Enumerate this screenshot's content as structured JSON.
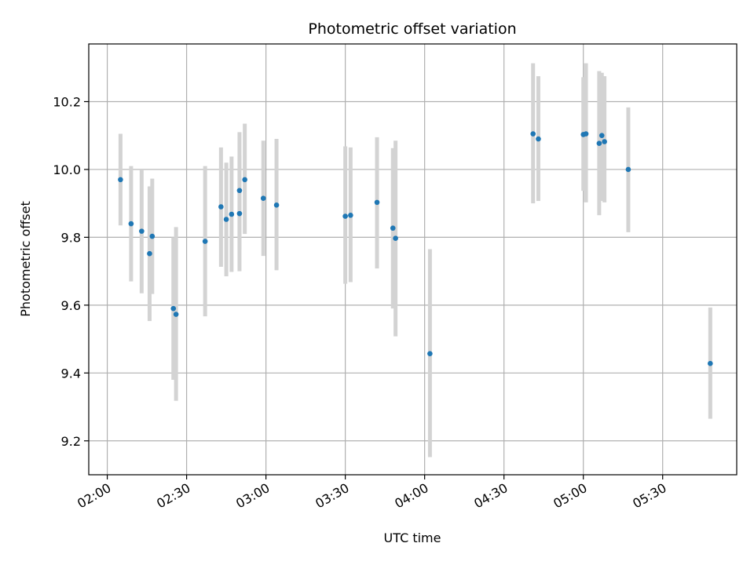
{
  "chart_data": {
    "type": "scatter",
    "title": "Photometric offset variation",
    "xlabel": "UTC time",
    "ylabel": "Photometric offset",
    "x_tick_labels": [
      "02:00",
      "02:30",
      "03:00",
      "03:30",
      "04:00",
      "04:30",
      "05:00",
      "05:30"
    ],
    "y_tick_labels": [
      "9.2",
      "9.4",
      "9.6",
      "9.8",
      "10.0",
      "10.2"
    ],
    "x_ticks": [
      "02:00",
      "02:30",
      "03:00",
      "03:30",
      "04:00",
      "04:30",
      "05:00",
      "05:30"
    ],
    "y_ticks": [
      9.2,
      9.4,
      9.6,
      9.8,
      10.0,
      10.2
    ],
    "xlim": [
      "01:53",
      "05:58"
    ],
    "ylim": [
      9.1,
      10.37
    ],
    "grid": true,
    "point_color": "#1f77b4",
    "errorbar_color": "#d3d3d3",
    "points": [
      {
        "x": "02:05",
        "y": 9.97,
        "err_low": 9.835,
        "err_high": 10.105
      },
      {
        "x": "02:09",
        "y": 9.84,
        "err_low": 9.67,
        "err_high": 10.01
      },
      {
        "x": "02:13",
        "y": 9.818,
        "err_low": 9.635,
        "err_high": 10.0
      },
      {
        "x": "02:16",
        "y": 9.752,
        "err_low": 9.553,
        "err_high": 9.95
      },
      {
        "x": "02:17",
        "y": 9.803,
        "err_low": 9.633,
        "err_high": 9.973
      },
      {
        "x": "02:25",
        "y": 9.59,
        "err_low": 9.38,
        "err_high": 9.8
      },
      {
        "x": "02:26",
        "y": 9.573,
        "err_low": 9.318,
        "err_high": 9.83
      },
      {
        "x": "02:37",
        "y": 9.788,
        "err_low": 9.567,
        "err_high": 10.01
      },
      {
        "x": "02:43",
        "y": 9.89,
        "err_low": 9.713,
        "err_high": 10.065
      },
      {
        "x": "02:45",
        "y": 9.853,
        "err_low": 9.685,
        "err_high": 10.02
      },
      {
        "x": "02:47",
        "y": 9.868,
        "err_low": 9.698,
        "err_high": 10.038
      },
      {
        "x": "02:50",
        "y": 9.87,
        "err_low": 9.7,
        "err_high": 10.04
      },
      {
        "x": "02:50",
        "y": 9.938,
        "err_low": 9.765,
        "err_high": 10.11
      },
      {
        "x": "02:52",
        "y": 9.97,
        "err_low": 9.81,
        "err_high": 10.135
      },
      {
        "x": "02:59",
        "y": 9.915,
        "err_low": 9.745,
        "err_high": 10.085
      },
      {
        "x": "03:04",
        "y": 9.895,
        "err_low": 9.703,
        "err_high": 10.09
      },
      {
        "x": "03:30",
        "y": 9.862,
        "err_low": 9.663,
        "err_high": 10.068
      },
      {
        "x": "03:32",
        "y": 9.865,
        "err_low": 9.668,
        "err_high": 10.065
      },
      {
        "x": "03:42",
        "y": 9.903,
        "err_low": 9.708,
        "err_high": 10.095
      },
      {
        "x": "03:48",
        "y": 9.827,
        "err_low": 9.59,
        "err_high": 10.063
      },
      {
        "x": "03:49",
        "y": 9.797,
        "err_low": 9.508,
        "err_high": 10.085
      },
      {
        "x": "04:02",
        "y": 9.457,
        "err_low": 9.152,
        "err_high": 9.765
      },
      {
        "x": "04:41",
        "y": 10.105,
        "err_low": 9.9,
        "err_high": 10.313
      },
      {
        "x": "04:43",
        "y": 10.09,
        "err_low": 9.907,
        "err_high": 10.275
      },
      {
        "x": "05:00",
        "y": 10.103,
        "err_low": 9.937,
        "err_high": 10.272
      },
      {
        "x": "05:01",
        "y": 10.105,
        "err_low": 9.903,
        "err_high": 10.313
      },
      {
        "x": "05:06",
        "y": 10.077,
        "err_low": 9.865,
        "err_high": 10.29
      },
      {
        "x": "05:07",
        "y": 10.1,
        "err_low": 9.907,
        "err_high": 10.285
      },
      {
        "x": "05:08",
        "y": 10.082,
        "err_low": 9.903,
        "err_high": 10.275
      },
      {
        "x": "05:17",
        "y": 10.0,
        "err_low": 9.815,
        "err_high": 10.183
      },
      {
        "x": "05:48",
        "y": 9.428,
        "err_low": 9.265,
        "err_high": 9.593
      }
    ]
  }
}
